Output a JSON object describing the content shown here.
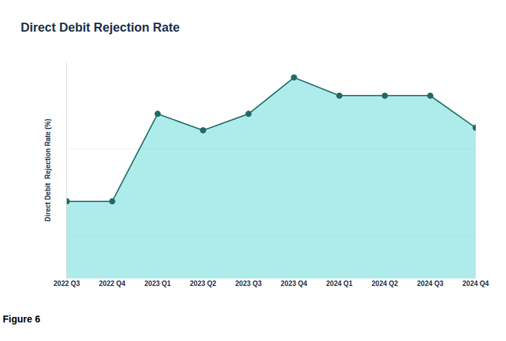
{
  "chart_data": {
    "type": "area",
    "title": "Direct Debit Rejection Rate",
    "y_label": "Direct Debit  Rejection Rate (%)",
    "annotations": [
      "Figure 6"
    ],
    "categories": [
      "2022 Q3",
      "2022 Q4",
      "2023 Q1",
      "2023 Q2",
      "2023 Q3",
      "2023 Q4",
      "2024 Q1",
      "2024 Q2",
      "2024 Q3",
      "2024 Q4"
    ],
    "values": [
      1.39,
      1.39,
      2.4,
      2.21,
      2.4,
      2.82,
      2.61,
      2.61,
      2.61,
      2.24
    ],
    "color": "#1f6b66",
    "marker": "circle",
    "ylim": [
      0.5,
      3
    ],
    "yticks": [
      1,
      2,
      3
    ],
    "grid": true,
    "tick_labels": "x"
  }
}
